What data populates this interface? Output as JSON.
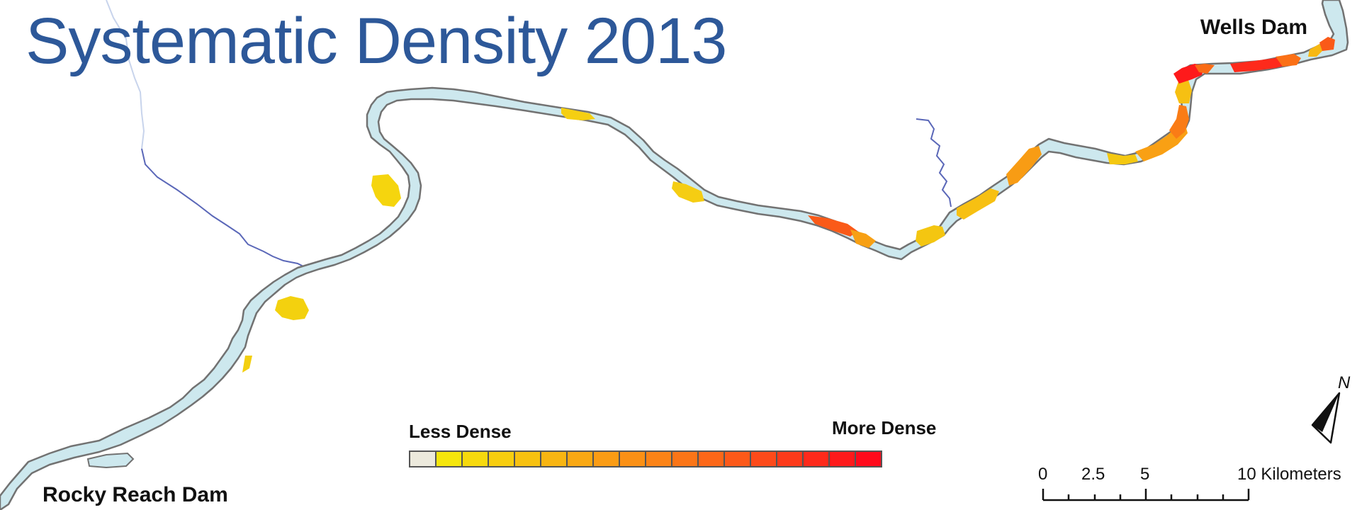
{
  "title": "Systematic Density 2013",
  "labels": {
    "upstream_dam": "Wells Dam",
    "downstream_dam": "Rocky Reach Dam"
  },
  "legend": {
    "low_label": "Less Dense",
    "high_label": "More Dense",
    "ramp_colors": [
      "#ece9dc",
      "#f5e60c",
      "#f6d90d",
      "#f7cd0f",
      "#f7c110",
      "#f8b512",
      "#f9a813",
      "#fa9c14",
      "#fa9015",
      "#fb8316",
      "#fb7517",
      "#fc6718",
      "#fc5919",
      "#fd4a1a",
      "#fd3a1a",
      "#fe2a1b",
      "#fe1a1b",
      "#ff0a1b"
    ]
  },
  "scale_bar": {
    "labels": [
      "0",
      "2.5",
      "5",
      "10 Kilometers"
    ]
  },
  "north_arrow": {
    "letter": "N"
  },
  "colors": {
    "water": "#cde8ee",
    "shore": "#727272",
    "stream": "#5566bb",
    "title": "#2d5899"
  }
}
